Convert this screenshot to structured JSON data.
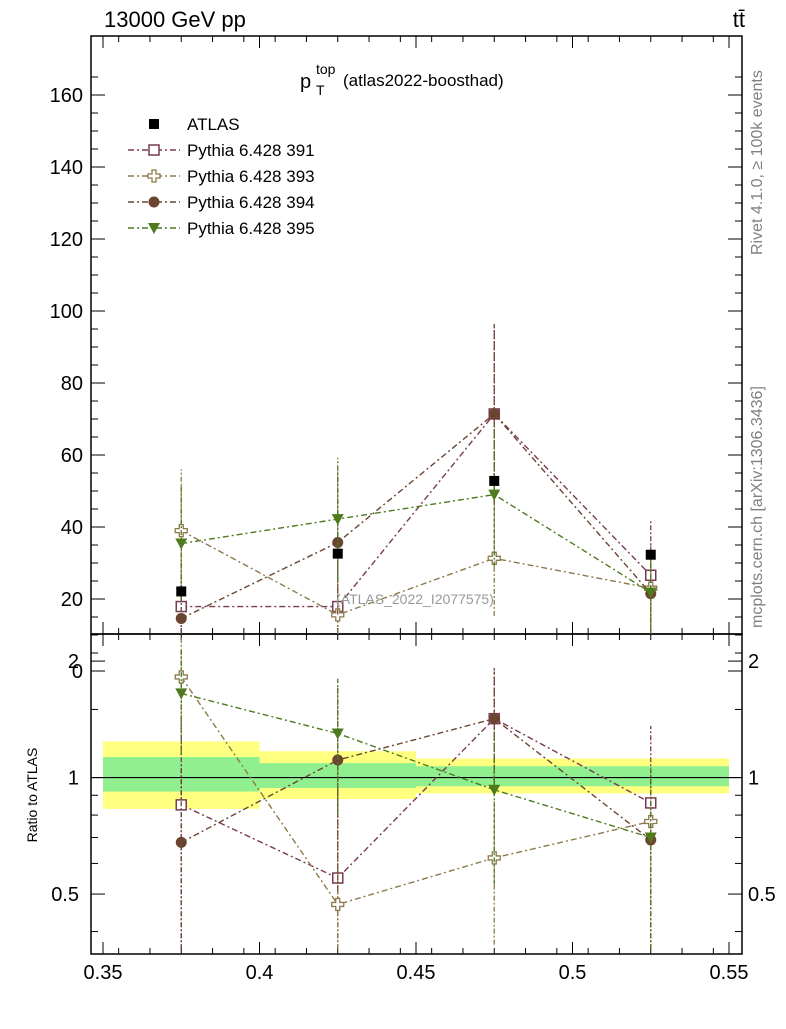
{
  "header": {
    "left": "13000 GeV pp",
    "right": "tt̄"
  },
  "side": {
    "rivet": "Rivet 4.1.0, ≥ 100k events",
    "mcplots": "mcplots.cern.ch [arXiv:1306.3436]"
  },
  "chart_data": {
    "type": "scatter",
    "title_main": "p",
    "title_sup": "top",
    "title_sub": "T",
    "title_note": "(atlas2022-boosthad)",
    "watermark": "(ATLAS_2022_I2077575)",
    "x_ticks": [
      "0.35",
      "0.4",
      "0.45",
      "0.5",
      "0.55"
    ],
    "y_ticks_main": [
      "0",
      "20",
      "40",
      "60",
      "80",
      "100",
      "120",
      "140",
      "160"
    ],
    "y_ticks_ratio": [
      "0.5",
      "1",
      "2"
    ],
    "ratio_ylabel": "Ratio to ATLAS",
    "xlim": [
      0.35,
      0.55
    ],
    "ylim_main": [
      0,
      167
    ],
    "ylim_ratio": [
      0.35,
      2.35
    ],
    "data": {
      "name": "ATLAS",
      "x": [
        0.375,
        0.425,
        0.475,
        0.525
      ],
      "y": [
        22.1,
        32.6,
        52.8,
        32.3
      ],
      "bins": [
        [
          0.35,
          0.4
        ],
        [
          0.4,
          0.45
        ],
        [
          0.45,
          0.5
        ],
        [
          0.5,
          0.55
        ]
      ],
      "ratio_band_1s": [
        [
          0.92,
          1.13
        ],
        [
          0.94,
          1.09
        ],
        [
          0.95,
          1.07
        ],
        [
          0.95,
          1.07
        ]
      ],
      "ratio_band_2s": [
        [
          0.83,
          1.24
        ],
        [
          0.88,
          1.17
        ],
        [
          0.91,
          1.12
        ],
        [
          0.91,
          1.12
        ]
      ]
    },
    "series": [
      {
        "name": "Pythia 6.428 391",
        "marker": "open-square",
        "color": "#7a3a52",
        "y": [
          17.9,
          17.9,
          71.4,
          26.6
        ],
        "err": [
          13,
          13,
          24,
          15
        ],
        "ratio": [
          0.85,
          0.55,
          1.42,
          0.86
        ],
        "ratio_err": [
          0.6,
          0.4,
          0.46,
          0.5
        ]
      },
      {
        "name": "Pythia 6.428 393",
        "marker": "open-cross",
        "color": "#8c7a4a",
        "y": [
          39.0,
          15.6,
          31.3,
          23.0
        ],
        "err": [
          17,
          10,
          16,
          12
        ],
        "ratio": [
          1.82,
          0.47,
          0.62,
          0.77
        ],
        "ratio_err": [
          0.5,
          0.3,
          0.25,
          0.3
        ]
      },
      {
        "name": "Pythia 6.428 394",
        "marker": "filled-circle",
        "color": "#6b4530",
        "y": [
          14.6,
          35.7,
          71.4,
          21.5
        ],
        "err": [
          10,
          20,
          25,
          12
        ],
        "ratio": [
          0.68,
          1.11,
          1.42,
          0.69
        ],
        "ratio_err": [
          0.4,
          0.6,
          0.5,
          0.35
        ]
      },
      {
        "name": "Pythia 6.428 395",
        "marker": "filled-triangle-down",
        "color": "#4f7a1e",
        "y": [
          35.4,
          42.2,
          49.0,
          21.8
        ],
        "err": [
          16,
          17,
          20,
          12
        ],
        "ratio": [
          1.65,
          1.3,
          0.93,
          0.7
        ],
        "ratio_err": [
          0.5,
          0.5,
          0.4,
          0.35
        ]
      }
    ]
  }
}
